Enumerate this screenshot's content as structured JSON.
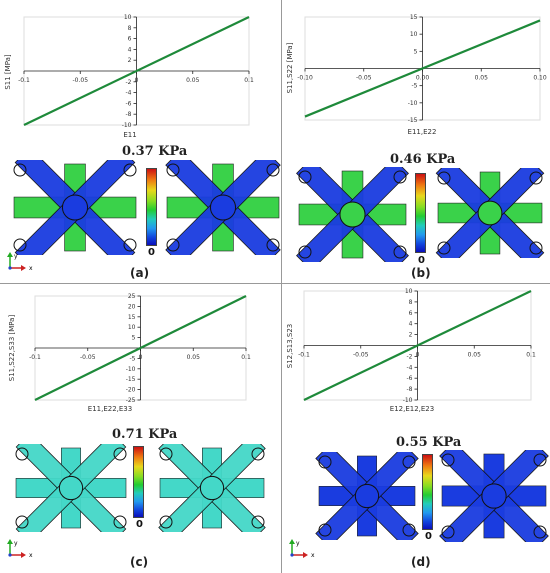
{
  "palette": {
    "line": "#1e8a3a",
    "axis": "#222222",
    "grid": "#dddddd",
    "divider": "#999999",
    "lattice_blue": "#1a3ce0",
    "lattice_green": "#3ad24a",
    "lattice_cyan": "#44d8c8"
  },
  "panels": [
    {
      "label": "(a)",
      "stress": "0.37 KPa",
      "legend_zero": "0",
      "triad": {
        "y": "y",
        "x": "x"
      },
      "lattice": {
        "center_color": "blue",
        "cross_color": "green",
        "arm_color": "blue"
      }
    },
    {
      "label": "(b)",
      "stress": "0.46 KPa",
      "legend_zero": "0",
      "triad": {
        "y": "y",
        "x": "x"
      },
      "lattice": {
        "center_color": "green",
        "cross_color": "green",
        "arm_color": "blue"
      }
    },
    {
      "label": "(c)",
      "stress": "0.71 KPa",
      "legend_zero": "0",
      "triad": {
        "y": "y",
        "x": "x"
      },
      "lattice": {
        "center_color": "cyan",
        "cross_color": "cyan",
        "arm_color": "cyan"
      }
    },
    {
      "label": "(d)",
      "stress": "0.55 KPa",
      "legend_zero": "0",
      "triad": {
        "y": "y",
        "x": "x"
      },
      "lattice": {
        "center_color": "blue",
        "cross_color": "blue",
        "arm_color": "blue"
      }
    }
  ],
  "chart_data": [
    {
      "type": "line",
      "title": "",
      "xlabel": "E11",
      "ylabel": "S11 [MPa]",
      "xlim": [
        -0.1,
        0.1
      ],
      "ylim": [
        -10,
        10
      ],
      "xticks": [
        -0.1,
        -0.05,
        0,
        0.05,
        0.1
      ],
      "xtick_labels": [
        "-0.1",
        "-0.05",
        "0",
        "0.05",
        "0.1"
      ],
      "yticks": [
        -10,
        -8,
        -6,
        -4,
        -2,
        0,
        2,
        4,
        6,
        8,
        10
      ],
      "ytick_labels": [
        "-10",
        "-8",
        "-6",
        "-4",
        "-2",
        "0",
        "2",
        "4",
        "6",
        "8",
        "10"
      ],
      "series": [
        {
          "x": [
            -0.1,
            0.1
          ],
          "y": [
            -10,
            10
          ]
        }
      ]
    },
    {
      "type": "line",
      "title": "",
      "xlabel": "E11,E22",
      "ylabel": "S11,S22 [MPa]",
      "xlim": [
        -0.1,
        0.1
      ],
      "ylim": [
        -15,
        15
      ],
      "xticks": [
        -0.1,
        -0.05,
        0,
        0.05,
        0.1
      ],
      "xtick_labels": [
        "-0.10",
        "-0.05",
        "0.00",
        "0.05",
        "0.10"
      ],
      "yticks": [
        -15,
        -10,
        -5,
        0,
        5,
        10,
        15
      ],
      "ytick_labels": [
        "-15",
        "-10",
        "-5",
        "0",
        "5",
        "10",
        "15"
      ],
      "series": [
        {
          "x": [
            -0.1,
            0.1
          ],
          "y": [
            -14,
            14
          ]
        }
      ]
    },
    {
      "type": "line",
      "title": "",
      "xlabel": "E11,E22,E33",
      "ylabel": "S11,S22,S33 [MPa]",
      "xlim": [
        -0.1,
        0.1
      ],
      "ylim": [
        -25,
        25
      ],
      "xticks": [
        -0.1,
        -0.05,
        0,
        0.05,
        0.1
      ],
      "xtick_labels": [
        "-0.1",
        "-0.05",
        "0",
        "0.05",
        "0.1"
      ],
      "yticks": [
        -25,
        -20,
        -15,
        -10,
        -5,
        0,
        5,
        10,
        15,
        20,
        25
      ],
      "ytick_labels": [
        "-25",
        "-20",
        "-15",
        "-10",
        "-5",
        "0",
        "5",
        "10",
        "15",
        "20",
        "25"
      ],
      "series": [
        {
          "x": [
            -0.1,
            0.1
          ],
          "y": [
            -25,
            25
          ]
        }
      ]
    },
    {
      "type": "line",
      "title": "",
      "xlabel": "E12,E12,E23",
      "ylabel": "S12,S13,S23",
      "xlim": [
        -0.1,
        0.1
      ],
      "ylim": [
        -10,
        10
      ],
      "xticks": [
        -0.1,
        -0.05,
        0,
        0.05,
        0.1
      ],
      "xtick_labels": [
        "-0.1",
        "-0.05",
        "0",
        "0.05",
        "0.1"
      ],
      "yticks": [
        -10,
        -8,
        -6,
        -4,
        -2,
        0,
        2,
        4,
        6,
        8,
        10
      ],
      "ytick_labels": [
        "-10",
        "-8",
        "-6",
        "-4",
        "-2",
        "0",
        "2",
        "4",
        "6",
        "8",
        "10"
      ],
      "series": [
        {
          "x": [
            -0.1,
            0.1
          ],
          "y": [
            -10,
            10
          ]
        }
      ]
    }
  ]
}
